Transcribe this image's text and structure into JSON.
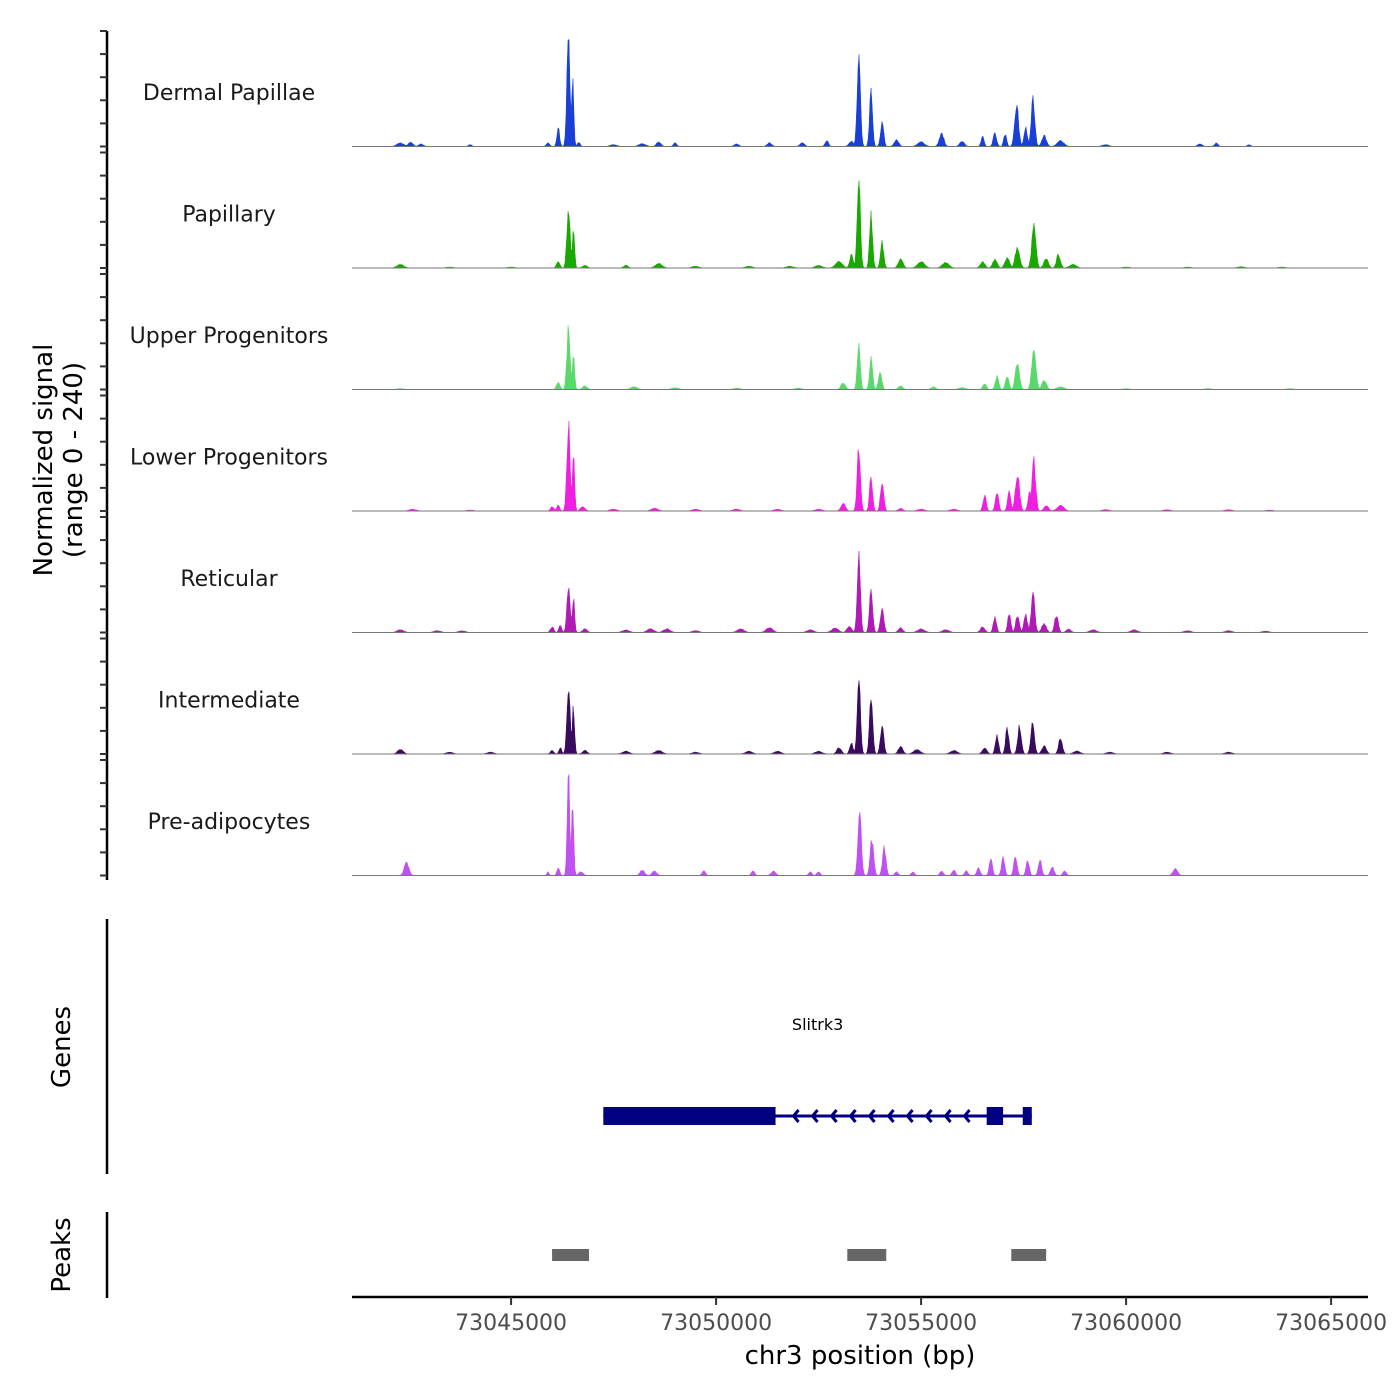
{
  "chart_data": {
    "type": "area",
    "title": "",
    "xlabel": "chr3 position (bp)",
    "ylabel": "Normalized signal",
    "ylabel_sub": "(range 0 - 240)",
    "ylim": [
      0,
      240
    ],
    "xlim": [
      73041120,
      73065900
    ],
    "x_ticks": [
      73045000,
      73050000,
      73055000,
      73060000,
      73065000
    ],
    "x_tick_labels": [
      "73045000",
      "73050000",
      "73055000",
      "73060000",
      "73065000"
    ],
    "grid": false,
    "tracks": [
      {
        "name": "Dermal Papillae",
        "color": "#1a3fd6",
        "peaks": [
          [
            73042300,
            8,
            300
          ],
          [
            73042550,
            10,
            200
          ],
          [
            73042800,
            6,
            200
          ],
          [
            73044000,
            4,
            150
          ],
          [
            73045900,
            8,
            150
          ],
          [
            73046150,
            40,
            120
          ],
          [
            73046400,
            238,
            140
          ],
          [
            73046500,
            150,
            100
          ],
          [
            73046650,
            10,
            120
          ],
          [
            73047500,
            4,
            300
          ],
          [
            73048200,
            6,
            300
          ],
          [
            73048600,
            10,
            200
          ],
          [
            73049000,
            8,
            150
          ],
          [
            73050500,
            6,
            200
          ],
          [
            73051300,
            8,
            200
          ],
          [
            73052100,
            8,
            200
          ],
          [
            73052700,
            14,
            150
          ],
          [
            73053300,
            12,
            200
          ],
          [
            73053480,
            212,
            140
          ],
          [
            73053780,
            125,
            130
          ],
          [
            73054050,
            55,
            140
          ],
          [
            73054400,
            14,
            200
          ],
          [
            73055000,
            10,
            300
          ],
          [
            73055500,
            28,
            200
          ],
          [
            73056000,
            12,
            200
          ],
          [
            73056500,
            22,
            130
          ],
          [
            73056800,
            28,
            150
          ],
          [
            73057050,
            28,
            130
          ],
          [
            73057330,
            90,
            170
          ],
          [
            73057550,
            40,
            150
          ],
          [
            73057730,
            100,
            160
          ],
          [
            73058000,
            24,
            200
          ],
          [
            73058400,
            12,
            300
          ],
          [
            73059500,
            4,
            300
          ],
          [
            73061800,
            6,
            200
          ],
          [
            73062200,
            8,
            150
          ],
          [
            73063000,
            4,
            150
          ]
        ]
      },
      {
        "name": "Papillary",
        "color": "#18a800",
        "peaks": [
          [
            73042300,
            8,
            300
          ],
          [
            73043500,
            2,
            300
          ],
          [
            73045000,
            2,
            300
          ],
          [
            73046150,
            14,
            150
          ],
          [
            73046400,
            135,
            140
          ],
          [
            73046520,
            80,
            100
          ],
          [
            73046800,
            6,
            200
          ],
          [
            73047800,
            6,
            200
          ],
          [
            73048600,
            10,
            300
          ],
          [
            73049500,
            4,
            300
          ],
          [
            73050800,
            4,
            300
          ],
          [
            73051800,
            4,
            300
          ],
          [
            73052500,
            6,
            300
          ],
          [
            73053000,
            14,
            300
          ],
          [
            73053300,
            30,
            150
          ],
          [
            73053480,
            190,
            140
          ],
          [
            73053780,
            115,
            130
          ],
          [
            73054050,
            55,
            140
          ],
          [
            73054500,
            20,
            200
          ],
          [
            73055000,
            14,
            300
          ],
          [
            73055600,
            12,
            300
          ],
          [
            73056500,
            14,
            200
          ],
          [
            73056800,
            18,
            200
          ],
          [
            73057100,
            22,
            200
          ],
          [
            73057350,
            45,
            200
          ],
          [
            73057750,
            90,
            180
          ],
          [
            73058050,
            20,
            200
          ],
          [
            73058350,
            30,
            170
          ],
          [
            73058700,
            8,
            300
          ],
          [
            73060000,
            2,
            300
          ],
          [
            73061500,
            2,
            300
          ],
          [
            73062800,
            3,
            300
          ],
          [
            73063800,
            2,
            300
          ]
        ]
      },
      {
        "name": "Upper Progenitors",
        "color": "#5ad86a",
        "peaks": [
          [
            73042300,
            2,
            300
          ],
          [
            73046150,
            16,
            150
          ],
          [
            73046400,
            135,
            140
          ],
          [
            73046520,
            80,
            100
          ],
          [
            73046800,
            8,
            200
          ],
          [
            73048000,
            6,
            300
          ],
          [
            73049000,
            4,
            300
          ],
          [
            73050500,
            3,
            300
          ],
          [
            73052000,
            3,
            300
          ],
          [
            73053100,
            14,
            200
          ],
          [
            73053480,
            100,
            130
          ],
          [
            73053780,
            70,
            130
          ],
          [
            73054000,
            38,
            150
          ],
          [
            73054500,
            8,
            200
          ],
          [
            73055300,
            6,
            200
          ],
          [
            73056000,
            4,
            300
          ],
          [
            73056550,
            14,
            150
          ],
          [
            73056850,
            28,
            150
          ],
          [
            73057100,
            30,
            150
          ],
          [
            73057350,
            58,
            180
          ],
          [
            73057750,
            90,
            180
          ],
          [
            73058000,
            20,
            200
          ],
          [
            73058400,
            6,
            300
          ],
          [
            73060000,
            2,
            300
          ],
          [
            73062000,
            2,
            300
          ],
          [
            73064000,
            2,
            300
          ]
        ]
      },
      {
        "name": "Lower Progenitors",
        "color": "#f01ee0",
        "peaks": [
          [
            73042600,
            4,
            300
          ],
          [
            73044000,
            2,
            300
          ],
          [
            73046000,
            10,
            150
          ],
          [
            73046150,
            14,
            120
          ],
          [
            73046400,
            190,
            140
          ],
          [
            73046520,
            120,
            100
          ],
          [
            73046750,
            10,
            200
          ],
          [
            73047500,
            4,
            300
          ],
          [
            73048500,
            6,
            300
          ],
          [
            73049500,
            4,
            300
          ],
          [
            73050500,
            4,
            300
          ],
          [
            73051500,
            4,
            300
          ],
          [
            73052500,
            4,
            300
          ],
          [
            73053100,
            16,
            200
          ],
          [
            73053480,
            135,
            140
          ],
          [
            73053780,
            76,
            130
          ],
          [
            73054050,
            66,
            140
          ],
          [
            73054500,
            6,
            200
          ],
          [
            73055000,
            4,
            300
          ],
          [
            73055800,
            4,
            300
          ],
          [
            73056550,
            34,
            140
          ],
          [
            73056850,
            42,
            140
          ],
          [
            73057150,
            42,
            140
          ],
          [
            73057350,
            82,
            180
          ],
          [
            73057650,
            40,
            150
          ],
          [
            73057750,
            108,
            160
          ],
          [
            73058050,
            12,
            200
          ],
          [
            73058400,
            12,
            300
          ],
          [
            73059500,
            3,
            300
          ],
          [
            73061000,
            3,
            300
          ],
          [
            73062500,
            3,
            300
          ],
          [
            73063500,
            2,
            300
          ]
        ]
      },
      {
        "name": "Reticular",
        "color": "#b01ab4",
        "peaks": [
          [
            73042300,
            6,
            300
          ],
          [
            73043200,
            4,
            300
          ],
          [
            73043800,
            4,
            300
          ],
          [
            73046000,
            12,
            150
          ],
          [
            73046200,
            18,
            120
          ],
          [
            73046400,
            100,
            140
          ],
          [
            73046520,
            75,
            100
          ],
          [
            73046800,
            8,
            200
          ],
          [
            73047800,
            6,
            300
          ],
          [
            73048400,
            8,
            300
          ],
          [
            73048800,
            8,
            300
          ],
          [
            73049500,
            4,
            300
          ],
          [
            73050600,
            8,
            300
          ],
          [
            73051300,
            10,
            300
          ],
          [
            73052300,
            6,
            300
          ],
          [
            73052900,
            10,
            300
          ],
          [
            73053250,
            14,
            200
          ],
          [
            73053480,
            165,
            140
          ],
          [
            73053780,
            90,
            140
          ],
          [
            73054050,
            56,
            150
          ],
          [
            73054500,
            10,
            200
          ],
          [
            73055000,
            8,
            300
          ],
          [
            73055600,
            6,
            300
          ],
          [
            73056500,
            12,
            200
          ],
          [
            73056800,
            32,
            140
          ],
          [
            73057150,
            42,
            140
          ],
          [
            73057350,
            36,
            160
          ],
          [
            73057550,
            38,
            160
          ],
          [
            73057730,
            82,
            160
          ],
          [
            73058000,
            20,
            200
          ],
          [
            73058300,
            38,
            160
          ],
          [
            73058600,
            8,
            200
          ],
          [
            73059200,
            6,
            300
          ],
          [
            73060200,
            6,
            300
          ],
          [
            73061500,
            4,
            300
          ],
          [
            73062500,
            4,
            300
          ],
          [
            73063400,
            3,
            300
          ]
        ]
      },
      {
        "name": "Intermediate",
        "color": "#3a0a5e",
        "peaks": [
          [
            73042300,
            10,
            250
          ],
          [
            73043500,
            4,
            300
          ],
          [
            73044500,
            4,
            300
          ],
          [
            73046000,
            8,
            150
          ],
          [
            73046200,
            14,
            120
          ],
          [
            73046400,
            150,
            140
          ],
          [
            73046520,
            100,
            100
          ],
          [
            73046800,
            8,
            200
          ],
          [
            73047800,
            6,
            300
          ],
          [
            73048600,
            8,
            300
          ],
          [
            73049500,
            4,
            300
          ],
          [
            73050800,
            6,
            300
          ],
          [
            73051500,
            6,
            300
          ],
          [
            73052500,
            6,
            300
          ],
          [
            73053000,
            14,
            200
          ],
          [
            73053300,
            24,
            150
          ],
          [
            73053480,
            168,
            140
          ],
          [
            73053780,
            120,
            140
          ],
          [
            73054050,
            58,
            150
          ],
          [
            73054500,
            16,
            200
          ],
          [
            73054900,
            10,
            300
          ],
          [
            73055800,
            8,
            300
          ],
          [
            73056550,
            14,
            200
          ],
          [
            73056850,
            40,
            140
          ],
          [
            73057100,
            56,
            140
          ],
          [
            73057400,
            60,
            160
          ],
          [
            73057720,
            68,
            160
          ],
          [
            73058000,
            18,
            200
          ],
          [
            73058400,
            36,
            160
          ],
          [
            73058800,
            6,
            300
          ],
          [
            73059600,
            4,
            300
          ],
          [
            73061000,
            4,
            300
          ],
          [
            73062500,
            4,
            300
          ]
        ]
      },
      {
        "name": "Pre-adipocytes",
        "color": "#c050f0",
        "peaks": [
          [
            73042450,
            28,
            200
          ],
          [
            73045900,
            8,
            100
          ],
          [
            73046150,
            18,
            120
          ],
          [
            73046400,
            225,
            110
          ],
          [
            73046500,
            150,
            100
          ],
          [
            73046700,
            8,
            200
          ],
          [
            73048200,
            12,
            200
          ],
          [
            73048500,
            10,
            200
          ],
          [
            73049700,
            10,
            150
          ],
          [
            73050900,
            10,
            150
          ],
          [
            73051400,
            10,
            200
          ],
          [
            73052300,
            8,
            150
          ],
          [
            73052500,
            8,
            150
          ],
          [
            73053500,
            140,
            150
          ],
          [
            73053800,
            80,
            150
          ],
          [
            73054100,
            60,
            150
          ],
          [
            73054400,
            8,
            150
          ],
          [
            73054800,
            8,
            150
          ],
          [
            73055500,
            10,
            150
          ],
          [
            73055800,
            12,
            150
          ],
          [
            73056100,
            10,
            150
          ],
          [
            73056400,
            16,
            150
          ],
          [
            73056700,
            36,
            140
          ],
          [
            73057000,
            38,
            140
          ],
          [
            73057300,
            44,
            140
          ],
          [
            73057600,
            32,
            140
          ],
          [
            73057900,
            34,
            140
          ],
          [
            73058200,
            20,
            150
          ],
          [
            73058500,
            10,
            150
          ],
          [
            73061200,
            16,
            200
          ]
        ]
      }
    ],
    "genes": [
      {
        "name": "Slitrk3",
        "strand": "-",
        "start": 73047250,
        "end": 73057700,
        "color": "#000080",
        "exons": [
          [
            73047250,
            73051450
          ],
          [
            73056600,
            73057000
          ],
          [
            73057480,
            73057700
          ]
        ]
      }
    ],
    "peaks_track": {
      "label": "Peaks",
      "color": "#666666",
      "regions": [
        [
          73046000,
          73046900
        ],
        [
          73053200,
          73054150
        ],
        [
          73057200,
          73058050
        ]
      ]
    },
    "genes_track_label": "Genes"
  }
}
